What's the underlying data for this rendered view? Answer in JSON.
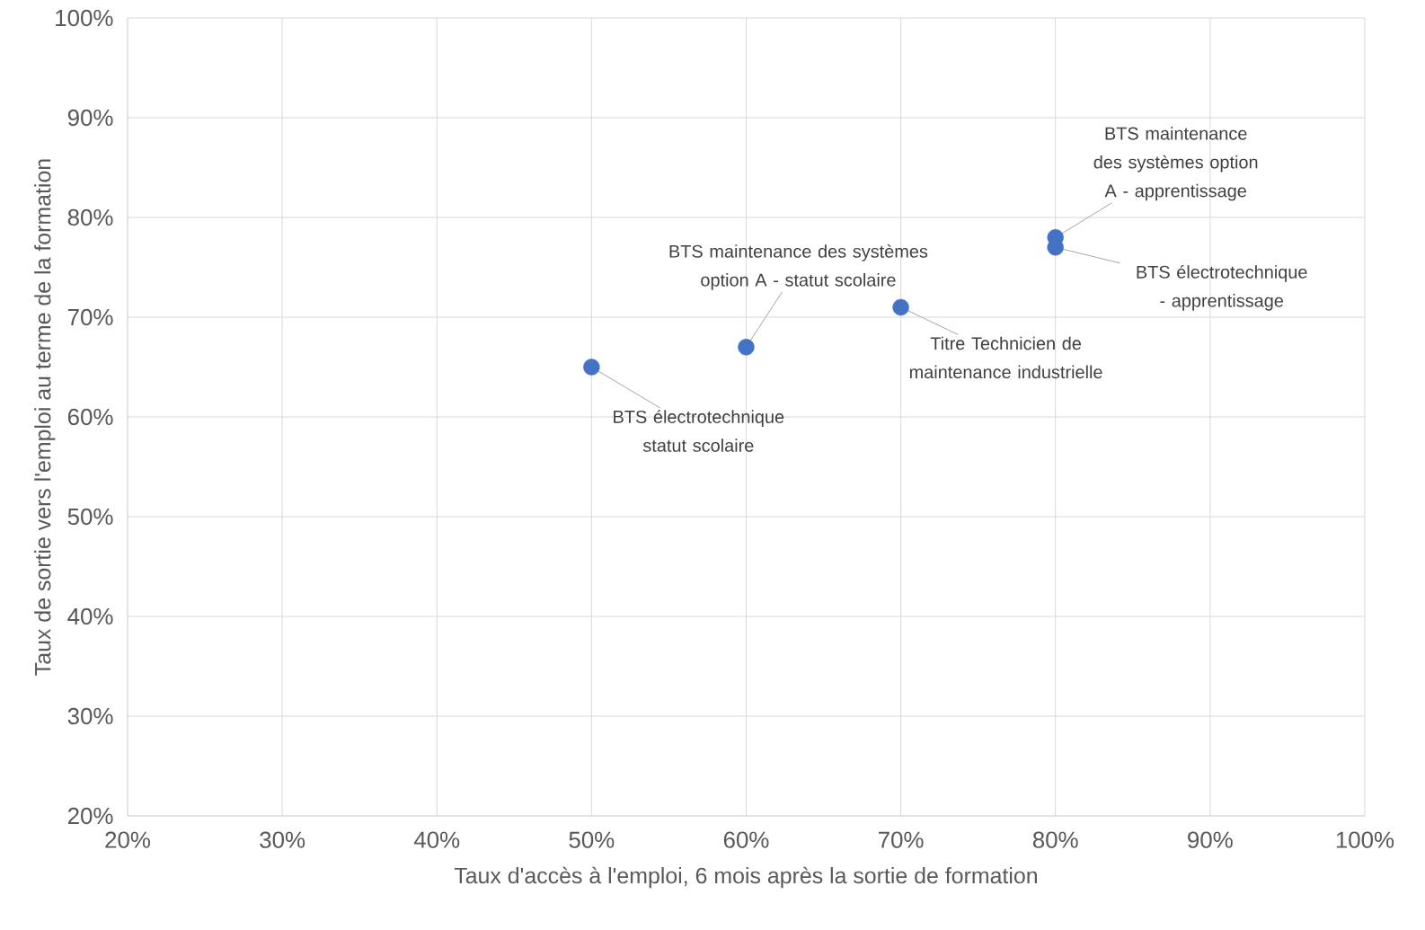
{
  "chart_data": {
    "type": "scatter",
    "xlabel": "Taux d'accès à l'emploi, 6 mois après la sortie de formation",
    "ylabel": "Taux de sortie vers l'emploi au terme de la formation",
    "x": [
      50,
      60,
      70,
      80,
      80
    ],
    "series": [
      {
        "color": "#4472c4",
        "values": [
          65,
          67,
          71,
          78,
          77
        ]
      }
    ],
    "marker": "circle",
    "grid": true,
    "xlim": [
      20,
      100
    ],
    "ylim": [
      20,
      100
    ],
    "xticks": [
      {
        "value": 20,
        "label": "20%"
      },
      {
        "value": 30,
        "label": "30%"
      },
      {
        "value": 40,
        "label": "40%"
      },
      {
        "value": 50,
        "label": "50%"
      },
      {
        "value": 60,
        "label": "60%"
      },
      {
        "value": 70,
        "label": "70%"
      },
      {
        "value": 80,
        "label": "80%"
      },
      {
        "value": 90,
        "label": "90%"
      },
      {
        "value": 100,
        "label": "100%"
      }
    ],
    "yticks": [
      {
        "value": 20,
        "label": "20%"
      },
      {
        "value": 30,
        "label": "30%"
      },
      {
        "value": 40,
        "label": "40%"
      },
      {
        "value": 50,
        "label": "50%"
      },
      {
        "value": 60,
        "label": "60%"
      },
      {
        "value": 70,
        "label": "70%"
      },
      {
        "value": 80,
        "label": "80%"
      },
      {
        "value": 90,
        "label": "90%"
      },
      {
        "value": 100,
        "label": "100%"
      }
    ],
    "annotations": [
      {
        "text": "BTS électrotechnique statut scolaire",
        "x": 50,
        "y": 65
      },
      {
        "text": "BTS maintenance des systèmes option A - statut scolaire",
        "x": 60,
        "y": 67
      },
      {
        "text": "Titre Technicien de maintenance industrielle",
        "x": 70,
        "y": 71
      },
      {
        "text": "BTS maintenance des systèmes option A - apprentissage",
        "x": 80,
        "y": 78
      },
      {
        "text": "BTS électrotechnique - apprentissage",
        "x": 80,
        "y": 77
      }
    ]
  }
}
